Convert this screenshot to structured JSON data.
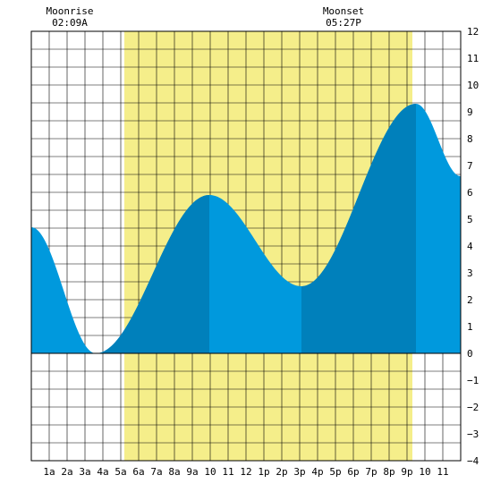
{
  "chart_data": {
    "type": "area",
    "title": "",
    "xlabel": "",
    "ylabel": "",
    "xlim": [
      0,
      24
    ],
    "ylim": [
      -4,
      12
    ],
    "grid": true,
    "y_ticks": [
      -4,
      -3,
      -2,
      -1,
      0,
      1,
      2,
      3,
      4,
      5,
      6,
      7,
      8,
      9,
      10,
      11,
      12
    ],
    "x_ticks": [
      {
        "x": 1,
        "label": "1a"
      },
      {
        "x": 2,
        "label": "2a"
      },
      {
        "x": 3,
        "label": "3a"
      },
      {
        "x": 4,
        "label": "4a"
      },
      {
        "x": 5,
        "label": "5a"
      },
      {
        "x": 6,
        "label": "6a"
      },
      {
        "x": 7,
        "label": "7a"
      },
      {
        "x": 8,
        "label": "8a"
      },
      {
        "x": 9,
        "label": "9a"
      },
      {
        "x": 10,
        "label": "10"
      },
      {
        "x": 11,
        "label": "11"
      },
      {
        "x": 12,
        "label": "12"
      },
      {
        "x": 13,
        "label": "1p"
      },
      {
        "x": 14,
        "label": "2p"
      },
      {
        "x": 15,
        "label": "3p"
      },
      {
        "x": 16,
        "label": "4p"
      },
      {
        "x": 17,
        "label": "5p"
      },
      {
        "x": 18,
        "label": "6p"
      },
      {
        "x": 19,
        "label": "7p"
      },
      {
        "x": 20,
        "label": "8p"
      },
      {
        "x": 21,
        "label": "9p"
      },
      {
        "x": 22,
        "label": "10"
      },
      {
        "x": 23,
        "label": "11"
      }
    ],
    "daylight": {
      "start": 5.2,
      "end": 21.3,
      "color": "#f5ee8a"
    },
    "tide_points": [
      [
        0,
        4.7
      ],
      [
        3.6,
        0.0
      ],
      [
        9.95,
        5.9
      ],
      [
        15.1,
        2.5
      ],
      [
        21.5,
        9.3
      ],
      [
        24,
        6.6
      ]
    ],
    "colors": {
      "light": "#0099dd",
      "dark": "#0080bb",
      "grid": "#000000"
    },
    "dark_bands": [
      [
        4.0,
        9.95
      ],
      [
        15.1,
        21.5
      ]
    ],
    "annotations": [
      {
        "name": "moonrise",
        "label": "Moonrise",
        "time": "02:09A",
        "x": 2.15
      },
      {
        "name": "moonset",
        "label": "Moonset",
        "time": "05:27P",
        "x": 17.45
      }
    ]
  }
}
